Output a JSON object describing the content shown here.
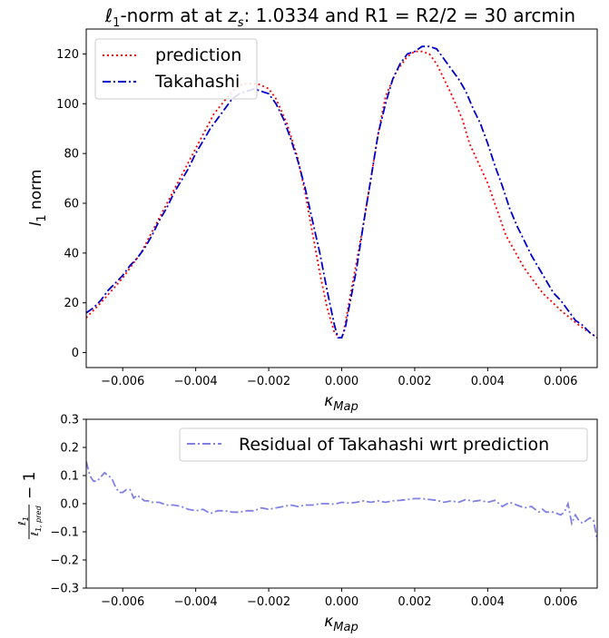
{
  "chart_data": [
    {
      "type": "line",
      "title_main": "ℓ",
      "title_sub": "1",
      "title_mid": "-norm at at ",
      "title_var": "z",
      "title_var_sub": "s",
      "title_rest": ": 1.0334 and R1 = R2/2 = 30 arcmin",
      "xlabel_main": "κ",
      "xlabel_sub": "Map",
      "ylabel_main": "l",
      "ylabel_sub": "1",
      "ylabel_rest": " norm",
      "xlim": [
        -0.007,
        0.007
      ],
      "ylim": [
        -6,
        130
      ],
      "xticks": [
        -0.006,
        -0.004,
        -0.002,
        0.0,
        0.002,
        0.004,
        0.006
      ],
      "xtick_labels": [
        "−0.006",
        "−0.004",
        "−0.002",
        "0.000",
        "0.002",
        "0.004",
        "0.006"
      ],
      "yticks": [
        0,
        20,
        40,
        60,
        80,
        100,
        120
      ],
      "ytick_labels": [
        "0",
        "20",
        "40",
        "60",
        "80",
        "100",
        "120"
      ],
      "legend_position": "top-left",
      "series": [
        {
          "name": "prediction",
          "color": "#ff0000",
          "style": "dotted",
          "x": [
            -0.007,
            -0.0066,
            -0.006,
            -0.0055,
            -0.005,
            -0.0045,
            -0.004,
            -0.0035,
            -0.003,
            -0.0027,
            -0.0025,
            -0.0023,
            -0.002,
            -0.0018,
            -0.0015,
            -0.0012,
            -0.001,
            -0.0008,
            -0.0006,
            -0.0004,
            -0.0002,
            -5e-05,
            0.0,
            5e-05,
            0.0002,
            0.0004,
            0.0006,
            0.0008,
            0.001,
            0.0012,
            0.0015,
            0.0018,
            0.002,
            0.0022,
            0.0024,
            0.0026,
            0.0028,
            0.003,
            0.0033,
            0.0035,
            0.004,
            0.0045,
            0.005,
            0.0055,
            0.006,
            0.0065,
            0.007
          ],
          "y": [
            14,
            20,
            30,
            40,
            54,
            68,
            82,
            96,
            105,
            108,
            108,
            108,
            106,
            102,
            92,
            78,
            64,
            48,
            32,
            18,
            8,
            6,
            6,
            8,
            20,
            36,
            52,
            70,
            88,
            103,
            113,
            119,
            121,
            121,
            120,
            116,
            110,
            104,
            94,
            84,
            68,
            47,
            34,
            24,
            17,
            11,
            6
          ]
        },
        {
          "name": "Takahashi",
          "color": "#0000cc",
          "style": "dashdot",
          "x": [
            -0.007,
            -0.0068,
            -0.0066,
            -0.0064,
            -0.0062,
            -0.006,
            -0.0058,
            -0.0056,
            -0.0054,
            -0.0052,
            -0.005,
            -0.0048,
            -0.0046,
            -0.0044,
            -0.0042,
            -0.004,
            -0.0038,
            -0.0036,
            -0.0034,
            -0.0032,
            -0.003,
            -0.0028,
            -0.0026,
            -0.0024,
            -0.0022,
            -0.002,
            -0.0018,
            -0.0016,
            -0.0014,
            -0.0012,
            -0.001,
            -0.0008,
            -0.0006,
            -0.0004,
            -0.0002,
            -0.0001,
            0.0,
            0.0001,
            0.0002,
            0.0004,
            0.0006,
            0.0008,
            0.001,
            0.0012,
            0.0014,
            0.0016,
            0.0018,
            0.002,
            0.0022,
            0.0024,
            0.0026,
            0.0028,
            0.003,
            0.0032,
            0.0034,
            0.0036,
            0.0038,
            0.004,
            0.0042,
            0.0044,
            0.0046,
            0.0048,
            0.005,
            0.0052,
            0.0054,
            0.0056,
            0.0058,
            0.006,
            0.0062,
            0.0064,
            0.0066,
            0.0068,
            0.007
          ],
          "y": [
            16,
            18,
            21,
            25,
            28,
            31,
            35,
            38,
            42,
            47,
            53,
            58,
            64,
            69,
            74,
            80,
            85,
            90,
            94,
            98,
            102,
            104,
            105,
            106,
            105,
            104,
            100,
            94,
            86,
            77,
            66,
            53,
            40,
            25,
            11,
            6,
            6,
            10,
            18,
            33,
            52,
            70,
            88,
            100,
            110,
            116,
            120,
            121,
            123,
            123,
            122,
            118,
            114,
            110,
            105,
            98,
            92,
            84,
            75,
            67,
            58,
            51,
            45,
            39,
            34,
            29,
            24,
            21,
            17,
            13,
            11,
            8,
            6
          ]
        }
      ]
    },
    {
      "type": "line",
      "xlabel_main": "κ",
      "xlabel_sub": "Map",
      "ylabel_num_main": "ℓ",
      "ylabel_num_sub": "1",
      "ylabel_den_main": "ℓ",
      "ylabel_den_sub": "1, pred",
      "ylabel_tail": "− 1",
      "xlim": [
        -0.007,
        0.007
      ],
      "ylim": [
        -0.3,
        0.3
      ],
      "xticks": [
        -0.006,
        -0.004,
        -0.002,
        0.0,
        0.002,
        0.004,
        0.006
      ],
      "xtick_labels": [
        "−0.006",
        "−0.004",
        "−0.002",
        "0.000",
        "0.002",
        "0.004",
        "0.006"
      ],
      "yticks": [
        -0.3,
        -0.2,
        -0.1,
        0.0,
        0.1,
        0.2,
        0.3
      ],
      "ytick_labels": [
        "−0.3",
        "−0.2",
        "−0.1",
        "0.0",
        "0.1",
        "0.2",
        "0.3"
      ],
      "legend_position": "top-right",
      "series": [
        {
          "name": "Residual of Takahashi wrt prediction",
          "color": "#8080e6",
          "style": "dashdot",
          "x": [
            -0.007,
            -0.0069,
            -0.0068,
            -0.0067,
            -0.0066,
            -0.0065,
            -0.0064,
            -0.0063,
            -0.0062,
            -0.0061,
            -0.006,
            -0.0059,
            -0.0058,
            -0.0057,
            -0.0056,
            -0.0055,
            -0.0054,
            -0.0053,
            -0.0052,
            -0.005,
            -0.0048,
            -0.0046,
            -0.0044,
            -0.0042,
            -0.004,
            -0.0038,
            -0.0036,
            -0.0034,
            -0.0032,
            -0.003,
            -0.0028,
            -0.0026,
            -0.0024,
            -0.0022,
            -0.002,
            -0.0018,
            -0.0016,
            -0.0014,
            -0.0012,
            -0.001,
            -0.0008,
            -0.0006,
            -0.0004,
            -0.0002,
            0.0,
            0.0002,
            0.0004,
            0.0006,
            0.0008,
            0.001,
            0.0012,
            0.0014,
            0.0016,
            0.0018,
            0.002,
            0.0022,
            0.0024,
            0.0026,
            0.0028,
            0.003,
            0.0032,
            0.0034,
            0.0036,
            0.0038,
            0.004,
            0.0042,
            0.0044,
            0.0046,
            0.0048,
            0.005,
            0.0052,
            0.0054,
            0.0055,
            0.0056,
            0.0058,
            0.006,
            0.0061,
            0.0062,
            0.0063,
            0.0064,
            0.0065,
            0.0066,
            0.0067,
            0.0068,
            0.0069,
            0.007
          ],
          "y": [
            0.15,
            0.1,
            0.08,
            0.08,
            0.095,
            0.11,
            0.1,
            0.09,
            0.06,
            0.04,
            0.04,
            0.05,
            0.05,
            0.02,
            0.03,
            0.02,
            0.01,
            0.01,
            0.005,
            0.005,
            -0.005,
            -0.005,
            -0.01,
            -0.02,
            -0.025,
            -0.02,
            -0.035,
            -0.025,
            -0.025,
            -0.03,
            -0.03,
            -0.025,
            -0.025,
            -0.015,
            -0.02,
            -0.015,
            -0.01,
            -0.005,
            -0.01,
            -0.005,
            -0.005,
            0.0,
            0.0,
            -0.002,
            0.005,
            0.002,
            0.005,
            0.01,
            0.005,
            0.01,
            0.005,
            0.01,
            0.012,
            0.015,
            0.018,
            0.018,
            0.015,
            0.012,
            0.005,
            0.01,
            0.005,
            0.015,
            0.008,
            0.012,
            0.005,
            0.012,
            -0.01,
            0.005,
            -0.005,
            -0.015,
            -0.01,
            -0.03,
            -0.02,
            -0.03,
            -0.03,
            -0.04,
            -0.03,
            0.0,
            -0.07,
            -0.04,
            -0.06,
            -0.07,
            -0.06,
            -0.05,
            -0.06,
            -0.13
          ]
        }
      ]
    }
  ]
}
